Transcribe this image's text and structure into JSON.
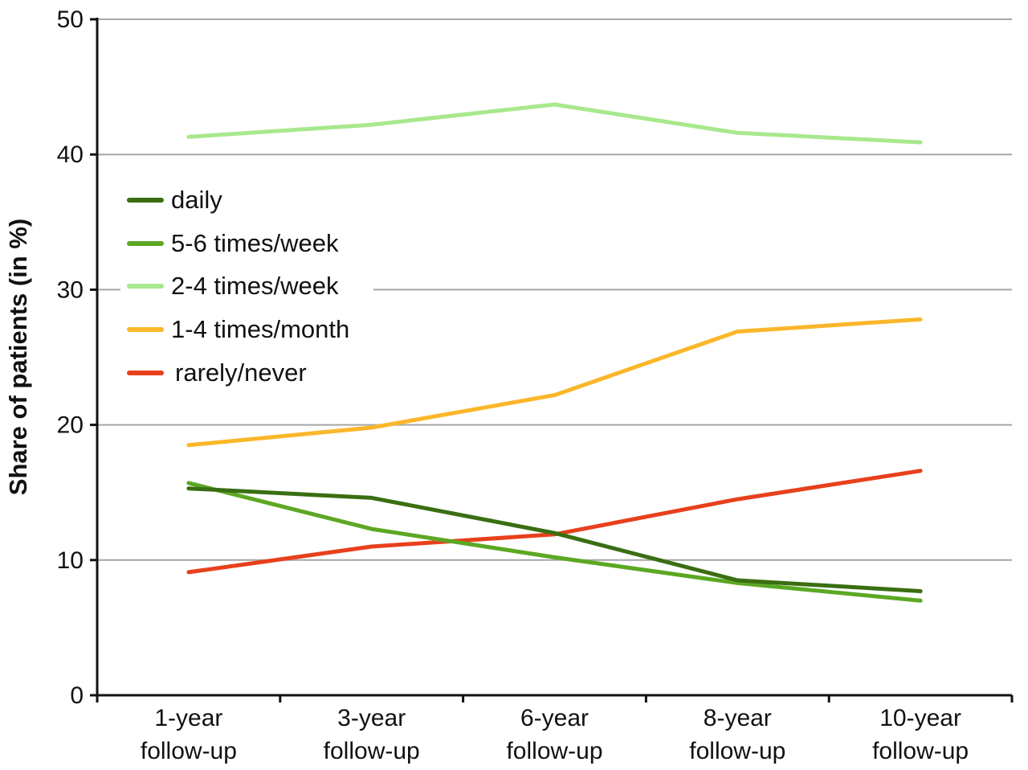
{
  "chart_data": {
    "type": "line",
    "categories": [
      [
        "1-year",
        "follow-up"
      ],
      [
        "3-year",
        "follow-up"
      ],
      [
        "6-year",
        "follow-up"
      ],
      [
        "8-year",
        "follow-up"
      ],
      [
        "10-year",
        "follow-up"
      ]
    ],
    "ylabel": "Share of patients (in %)",
    "ylim": [
      0,
      50
    ],
    "yticks": [
      0,
      10,
      20,
      30,
      40,
      50
    ],
    "grid": true,
    "legend": "left",
    "series": [
      {
        "name": "daily",
        "color": "#3a6e12",
        "values": [
          15.3,
          14.6,
          12.0,
          8.5,
          7.7
        ]
      },
      {
        "name": "5-6 times/week",
        "color": "#5ba823",
        "values": [
          15.7,
          12.3,
          10.2,
          8.3,
          7.0
        ]
      },
      {
        "name": "2-4 times/week",
        "color": "#a8e88e",
        "values": [
          41.3,
          42.2,
          43.7,
          41.6,
          40.9
        ]
      },
      {
        "name": "1-4 times/month",
        "color": "#fbb72a",
        "values": [
          18.5,
          19.8,
          22.2,
          26.9,
          27.8
        ]
      },
      {
        "name": "rarely/never",
        "color": "#e8401c",
        "values": [
          9.1,
          11.0,
          11.9,
          14.5,
          16.6
        ]
      }
    ]
  }
}
